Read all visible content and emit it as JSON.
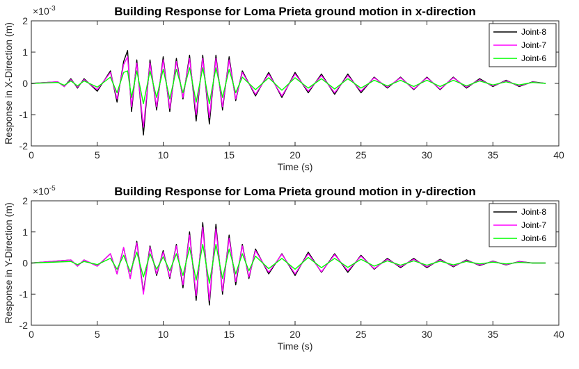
{
  "chart_data": [
    {
      "type": "line",
      "title": "Building Response for Loma Prieta ground motion in x-direction",
      "xlabel": "Time (s)",
      "ylabel": "Response in X-Direction (m)",
      "exponent_base": "×10",
      "exponent_power": "-3",
      "xlim": [
        0,
        40
      ],
      "ylim": [
        -2,
        2
      ],
      "xticks": [
        "0",
        "5",
        "10",
        "15",
        "20",
        "25",
        "30",
        "35",
        "40"
      ],
      "yticks": [
        "-2",
        "-1",
        "0",
        "1",
        "2"
      ],
      "legend_position": "top-right",
      "series": [
        {
          "name": "Joint-8",
          "color": "#000000",
          "x": [
            0,
            2,
            2.5,
            3,
            3.5,
            4,
            5,
            6,
            6.5,
            7,
            7.3,
            7.6,
            8,
            8.5,
            9,
            9.5,
            10,
            10.5,
            11,
            11.5,
            12,
            12.5,
            13,
            13.5,
            14,
            14.5,
            15,
            15.5,
            16,
            17,
            18,
            19,
            20,
            21,
            22,
            23,
            24,
            25,
            26,
            27,
            28,
            29,
            30,
            31,
            32,
            33,
            34,
            35,
            36,
            37,
            38,
            39
          ],
          "y": [
            0,
            0.05,
            -0.1,
            0.15,
            -0.15,
            0.15,
            -0.25,
            0.4,
            -0.6,
            0.7,
            1.05,
            -0.9,
            0.75,
            -1.65,
            0.75,
            -0.85,
            0.85,
            -0.9,
            0.8,
            -0.5,
            0.9,
            -1.2,
            0.9,
            -1.3,
            0.9,
            -0.85,
            0.85,
            -0.55,
            0.4,
            -0.4,
            0.35,
            -0.45,
            0.35,
            -0.3,
            0.3,
            -0.35,
            0.3,
            -0.3,
            0.2,
            -0.15,
            0.2,
            -0.2,
            0.2,
            -0.2,
            0.2,
            -0.15,
            0.15,
            -0.1,
            0.1,
            -0.1,
            0.05,
            0
          ]
        },
        {
          "name": "Joint-7",
          "color": "#ff00ff",
          "x": [
            0,
            2,
            2.5,
            3,
            3.5,
            4,
            5,
            6,
            6.5,
            7,
            7.3,
            7.6,
            8,
            8.5,
            9,
            9.5,
            10,
            10.5,
            11,
            11.5,
            12,
            12.5,
            13,
            13.5,
            14,
            14.5,
            15,
            15.5,
            16,
            17,
            18,
            19,
            20,
            21,
            22,
            23,
            24,
            25,
            26,
            27,
            28,
            29,
            30,
            31,
            32,
            33,
            34,
            35,
            36,
            37,
            38,
            39
          ],
          "y": [
            0,
            0.05,
            -0.1,
            0.12,
            -0.12,
            0.12,
            -0.2,
            0.35,
            -0.5,
            0.6,
            0.85,
            -0.75,
            0.65,
            -1.4,
            0.65,
            -0.75,
            0.75,
            -0.8,
            0.7,
            -0.45,
            0.8,
            -1.0,
            0.8,
            -1.1,
            0.8,
            -0.75,
            0.75,
            -0.5,
            0.35,
            -0.35,
            0.3,
            -0.4,
            0.3,
            -0.25,
            0.25,
            -0.3,
            0.25,
            -0.25,
            0.18,
            -0.12,
            0.18,
            -0.18,
            0.18,
            -0.18,
            0.18,
            -0.12,
            0.12,
            -0.08,
            0.08,
            -0.08,
            0.04,
            0
          ]
        },
        {
          "name": "Joint-6",
          "color": "#00ff00",
          "x": [
            0,
            2,
            2.5,
            3,
            3.5,
            4,
            5,
            6,
            6.5,
            7,
            7.3,
            7.6,
            8,
            8.5,
            9,
            9.5,
            10,
            10.5,
            11,
            11.5,
            12,
            12.5,
            13,
            13.5,
            14,
            14.5,
            15,
            15.5,
            16,
            17,
            18,
            19,
            20,
            21,
            22,
            23,
            24,
            25,
            26,
            27,
            28,
            29,
            30,
            31,
            32,
            33,
            34,
            35,
            36,
            37,
            38,
            39
          ],
          "y": [
            0,
            0.03,
            -0.06,
            0.08,
            -0.08,
            0.08,
            -0.12,
            0.2,
            -0.3,
            0.35,
            0.4,
            -0.45,
            0.4,
            -0.65,
            0.4,
            -0.45,
            0.45,
            -0.5,
            0.45,
            -0.3,
            0.5,
            -0.6,
            0.5,
            -0.65,
            0.5,
            -0.45,
            0.45,
            -0.3,
            0.2,
            -0.2,
            0.18,
            -0.22,
            0.18,
            -0.15,
            0.15,
            -0.18,
            0.15,
            -0.15,
            0.1,
            -0.08,
            0.1,
            -0.1,
            0.1,
            -0.1,
            0.1,
            -0.08,
            0.08,
            -0.05,
            0.05,
            -0.05,
            0.03,
            0
          ]
        }
      ]
    },
    {
      "type": "line",
      "title": "Building Response for Loma Prieta ground motion in y-direction",
      "xlabel": "Time (s)",
      "ylabel": "Response in Y-Direction (m)",
      "exponent_base": "×10",
      "exponent_power": "-5",
      "xlim": [
        0,
        40
      ],
      "ylim": [
        -2,
        2
      ],
      "xticks": [
        "0",
        "5",
        "10",
        "15",
        "20",
        "25",
        "30",
        "35",
        "40"
      ],
      "yticks": [
        "-2",
        "-1",
        "0",
        "1",
        "2"
      ],
      "legend_position": "top-right",
      "series": [
        {
          "name": "Joint-8",
          "color": "#000000",
          "x": [
            0,
            3,
            3.5,
            4,
            5,
            6,
            6.5,
            7,
            7.5,
            8,
            8.5,
            9,
            9.5,
            10,
            10.5,
            11,
            11.5,
            12,
            12.5,
            13,
            13.5,
            14,
            14.5,
            15,
            15.5,
            16,
            16.5,
            17,
            18,
            19,
            20,
            21,
            22,
            23,
            24,
            25,
            26,
            27,
            28,
            29,
            30,
            31,
            32,
            33,
            34,
            35,
            36,
            37,
            38,
            39
          ],
          "y": [
            0,
            0.1,
            -0.1,
            0.1,
            -0.1,
            0.3,
            -0.35,
            0.5,
            -0.5,
            0.7,
            -0.95,
            0.55,
            -0.4,
            0.4,
            -0.5,
            0.6,
            -0.8,
            1.0,
            -1.2,
            1.3,
            -1.35,
            1.25,
            -1.0,
            0.9,
            -0.7,
            0.6,
            -0.5,
            0.45,
            -0.35,
            0.3,
            -0.4,
            0.35,
            -0.3,
            0.3,
            -0.3,
            0.25,
            -0.2,
            0.15,
            -0.15,
            0.15,
            -0.15,
            0.12,
            -0.12,
            0.1,
            -0.08,
            0.06,
            -0.06,
            0.05,
            0,
            0
          ]
        },
        {
          "name": "Joint-7",
          "color": "#ff00ff",
          "x": [
            0,
            3,
            3.5,
            4,
            5,
            6,
            6.5,
            7,
            7.5,
            8,
            8.5,
            9,
            9.5,
            10,
            10.5,
            11,
            11.5,
            12,
            12.5,
            13,
            13.5,
            14,
            14.5,
            15,
            15.5,
            16,
            16.5,
            17,
            18,
            19,
            20,
            21,
            22,
            23,
            24,
            25,
            26,
            27,
            28,
            29,
            30,
            31,
            32,
            33,
            34,
            35,
            36,
            37,
            38,
            39
          ],
          "y": [
            0,
            0.1,
            -0.1,
            0.1,
            -0.1,
            0.3,
            -0.35,
            0.5,
            -0.5,
            0.65,
            -1.0,
            0.5,
            -0.35,
            0.35,
            -0.45,
            0.55,
            -0.7,
            0.9,
            -1.05,
            1.15,
            -1.2,
            1.1,
            -0.9,
            0.8,
            -0.6,
            0.55,
            -0.45,
            0.4,
            -0.3,
            0.28,
            -0.35,
            0.3,
            -0.28,
            0.27,
            -0.25,
            0.22,
            -0.18,
            0.12,
            -0.12,
            0.12,
            -0.12,
            0.1,
            -0.1,
            0.08,
            -0.06,
            0.05,
            -0.05,
            0.04,
            0,
            0
          ]
        },
        {
          "name": "Joint-6",
          "color": "#00ff00",
          "x": [
            0,
            3,
            3.5,
            4,
            5,
            6,
            6.5,
            7,
            7.5,
            8,
            8.5,
            9,
            9.5,
            10,
            10.5,
            11,
            11.5,
            12,
            12.5,
            13,
            13.5,
            14,
            14.5,
            15,
            15.5,
            16,
            16.5,
            17,
            18,
            19,
            20,
            21,
            22,
            23,
            24,
            25,
            26,
            27,
            28,
            29,
            30,
            31,
            32,
            33,
            34,
            35,
            36,
            37,
            38,
            39
          ],
          "y": [
            0,
            0.05,
            -0.05,
            0.05,
            -0.05,
            0.15,
            -0.2,
            0.25,
            -0.28,
            0.35,
            -0.45,
            0.3,
            -0.2,
            0.2,
            -0.25,
            0.3,
            -0.4,
            0.5,
            -0.55,
            0.6,
            -0.65,
            0.6,
            -0.5,
            0.45,
            -0.35,
            0.3,
            -0.25,
            0.22,
            -0.18,
            0.15,
            -0.2,
            0.18,
            -0.15,
            0.15,
            -0.14,
            0.12,
            -0.1,
            0.07,
            -0.07,
            0.07,
            -0.07,
            0.06,
            -0.06,
            0.05,
            -0.03,
            0.03,
            -0.03,
            0.02,
            0,
            0
          ]
        }
      ]
    }
  ]
}
